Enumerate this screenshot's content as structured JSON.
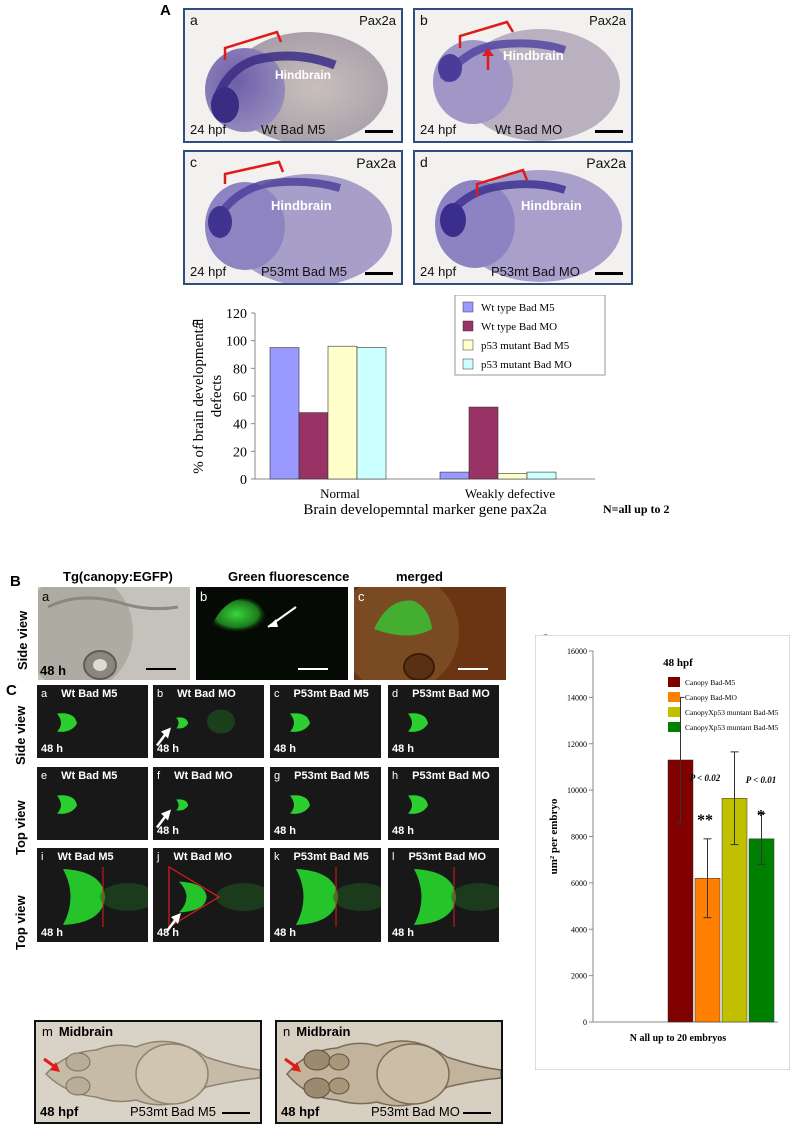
{
  "section_a": {
    "letter": "A",
    "panels": [
      {
        "letter": "a",
        "marker": "Pax2a",
        "region": "Hindbrain",
        "stage": "24 hpf",
        "condition": "Wt Bad M5",
        "arrow": false
      },
      {
        "letter": "b",
        "marker": "Pax2a",
        "region": "Hindbrain",
        "stage": "24 hpf",
        "condition": "Wt Bad MO",
        "arrow": true
      },
      {
        "letter": "c",
        "marker": "Pax2a",
        "region": "Hindbrain",
        "stage": "24 hpf",
        "condition": "P53mt Bad M5",
        "arrow": false
      },
      {
        "letter": "d",
        "marker": "Pax2a",
        "region": "Hindbrain",
        "stage": "24 hpf",
        "condition": "P53mt Bad MO",
        "arrow": false
      }
    ],
    "chart_letter": "e",
    "note": "N=all up to 20"
  },
  "section_b": {
    "letter": "B",
    "row_label": "Side view",
    "panels": [
      {
        "letter": "a",
        "title": "Tg(canopy:EGFP)",
        "time": "48 h"
      },
      {
        "letter": "b",
        "title": "Green fluorescence",
        "time": ""
      },
      {
        "letter": "c",
        "title": "merged",
        "time": ""
      }
    ]
  },
  "section_c": {
    "letter": "C",
    "rows": [
      {
        "label": "Side view",
        "tiles": [
          {
            "letter": "a",
            "title": "Wt Bad M5",
            "time": "48 h"
          },
          {
            "letter": "b",
            "title": "Wt Bad MO",
            "time": "48 h"
          },
          {
            "letter": "c",
            "title": "P53mt Bad M5",
            "time": "48 h"
          },
          {
            "letter": "d",
            "title": "P53mt Bad MO",
            "time": "48 h"
          }
        ]
      },
      {
        "label": "Top view",
        "tiles": [
          {
            "letter": "e",
            "title": "Wt Bad M5",
            "time": ""
          },
          {
            "letter": "f",
            "title": "Wt Bad MO",
            "time": "48 h"
          },
          {
            "letter": "g",
            "title": "P53mt Bad M5",
            "time": "48 h"
          },
          {
            "letter": "h",
            "title": "P53mt Bad MO",
            "time": "48 h"
          }
        ]
      },
      {
        "label": "Top view",
        "tiles": [
          {
            "letter": "i",
            "title": "Wt Bad M5",
            "time": "48 h"
          },
          {
            "letter": "j",
            "title": "Wt Bad MO",
            "time": "48 h"
          },
          {
            "letter": "k",
            "title": "P53mt Bad M5",
            "time": "48 h"
          },
          {
            "letter": "l",
            "title": "P53mt Bad MO",
            "time": "48 h"
          }
        ]
      }
    ],
    "bottom": [
      {
        "letter": "m",
        "title": "Midbrain",
        "stage": "48 hpf",
        "condition": "P53mt Bad M5"
      },
      {
        "letter": "n",
        "title": "Midbrain",
        "stage": "48 hpf",
        "condition": "P53mt Bad MO"
      }
    ]
  },
  "section_o": {
    "letter": "O,"
  },
  "chart_data": [
    {
      "type": "bar",
      "title": "",
      "xlabel": "Brain developemntal marker gene pax2a",
      "ylabel": "% of brain developmental defects",
      "ylim": [
        0,
        120
      ],
      "yticks": [
        0,
        20,
        40,
        60,
        80,
        100,
        120
      ],
      "categories": [
        "Normal",
        "Weakly defective"
      ],
      "series": [
        {
          "name": "Wt type Bad M5",
          "color": "#9999ff",
          "values": [
            95,
            5
          ]
        },
        {
          "name": "Wt type Bad MO",
          "color": "#993366",
          "values": [
            48,
            52
          ]
        },
        {
          "name": "p53 mutant Bad M5",
          "color": "#ffffcc",
          "values": [
            96,
            4
          ]
        },
        {
          "name": "p53 mutant Bad MO",
          "color": "#ccffff",
          "values": [
            95,
            5
          ]
        }
      ],
      "legend": "top-right"
    },
    {
      "type": "bar",
      "title": "48 hpf",
      "xlabel": "N all up to 20 embryos",
      "ylabel": "um² per embryo",
      "ylim": [
        0,
        16000
      ],
      "yticks": [
        0,
        2000,
        4000,
        6000,
        8000,
        10000,
        12000,
        14000,
        16000
      ],
      "series": [
        {
          "name": "Canopy Bad-M5",
          "color": "#800000",
          "values": [
            11300
          ],
          "error": [
            2700
          ]
        },
        {
          "name": "Canopy Bad-MO",
          "color": "#ff8000",
          "values": [
            6200
          ],
          "error": [
            1700
          ]
        },
        {
          "name": "CanopyXp53 muntant Bad-M5",
          "color": "#c0c000",
          "values": [
            9650
          ],
          "error": [
            2000
          ]
        },
        {
          "name": "CanopyXp53 muntant Bad-M5",
          "color": "#008000",
          "values": [
            7900
          ],
          "error": [
            1100
          ]
        }
      ],
      "annotations": [
        {
          "text": "P < 0.02",
          "series": 1
        },
        {
          "text": "**",
          "series": 1
        },
        {
          "text": "P < 0.01",
          "series": 3
        },
        {
          "text": "*",
          "series": 3
        }
      ],
      "legend": "top-right"
    }
  ]
}
